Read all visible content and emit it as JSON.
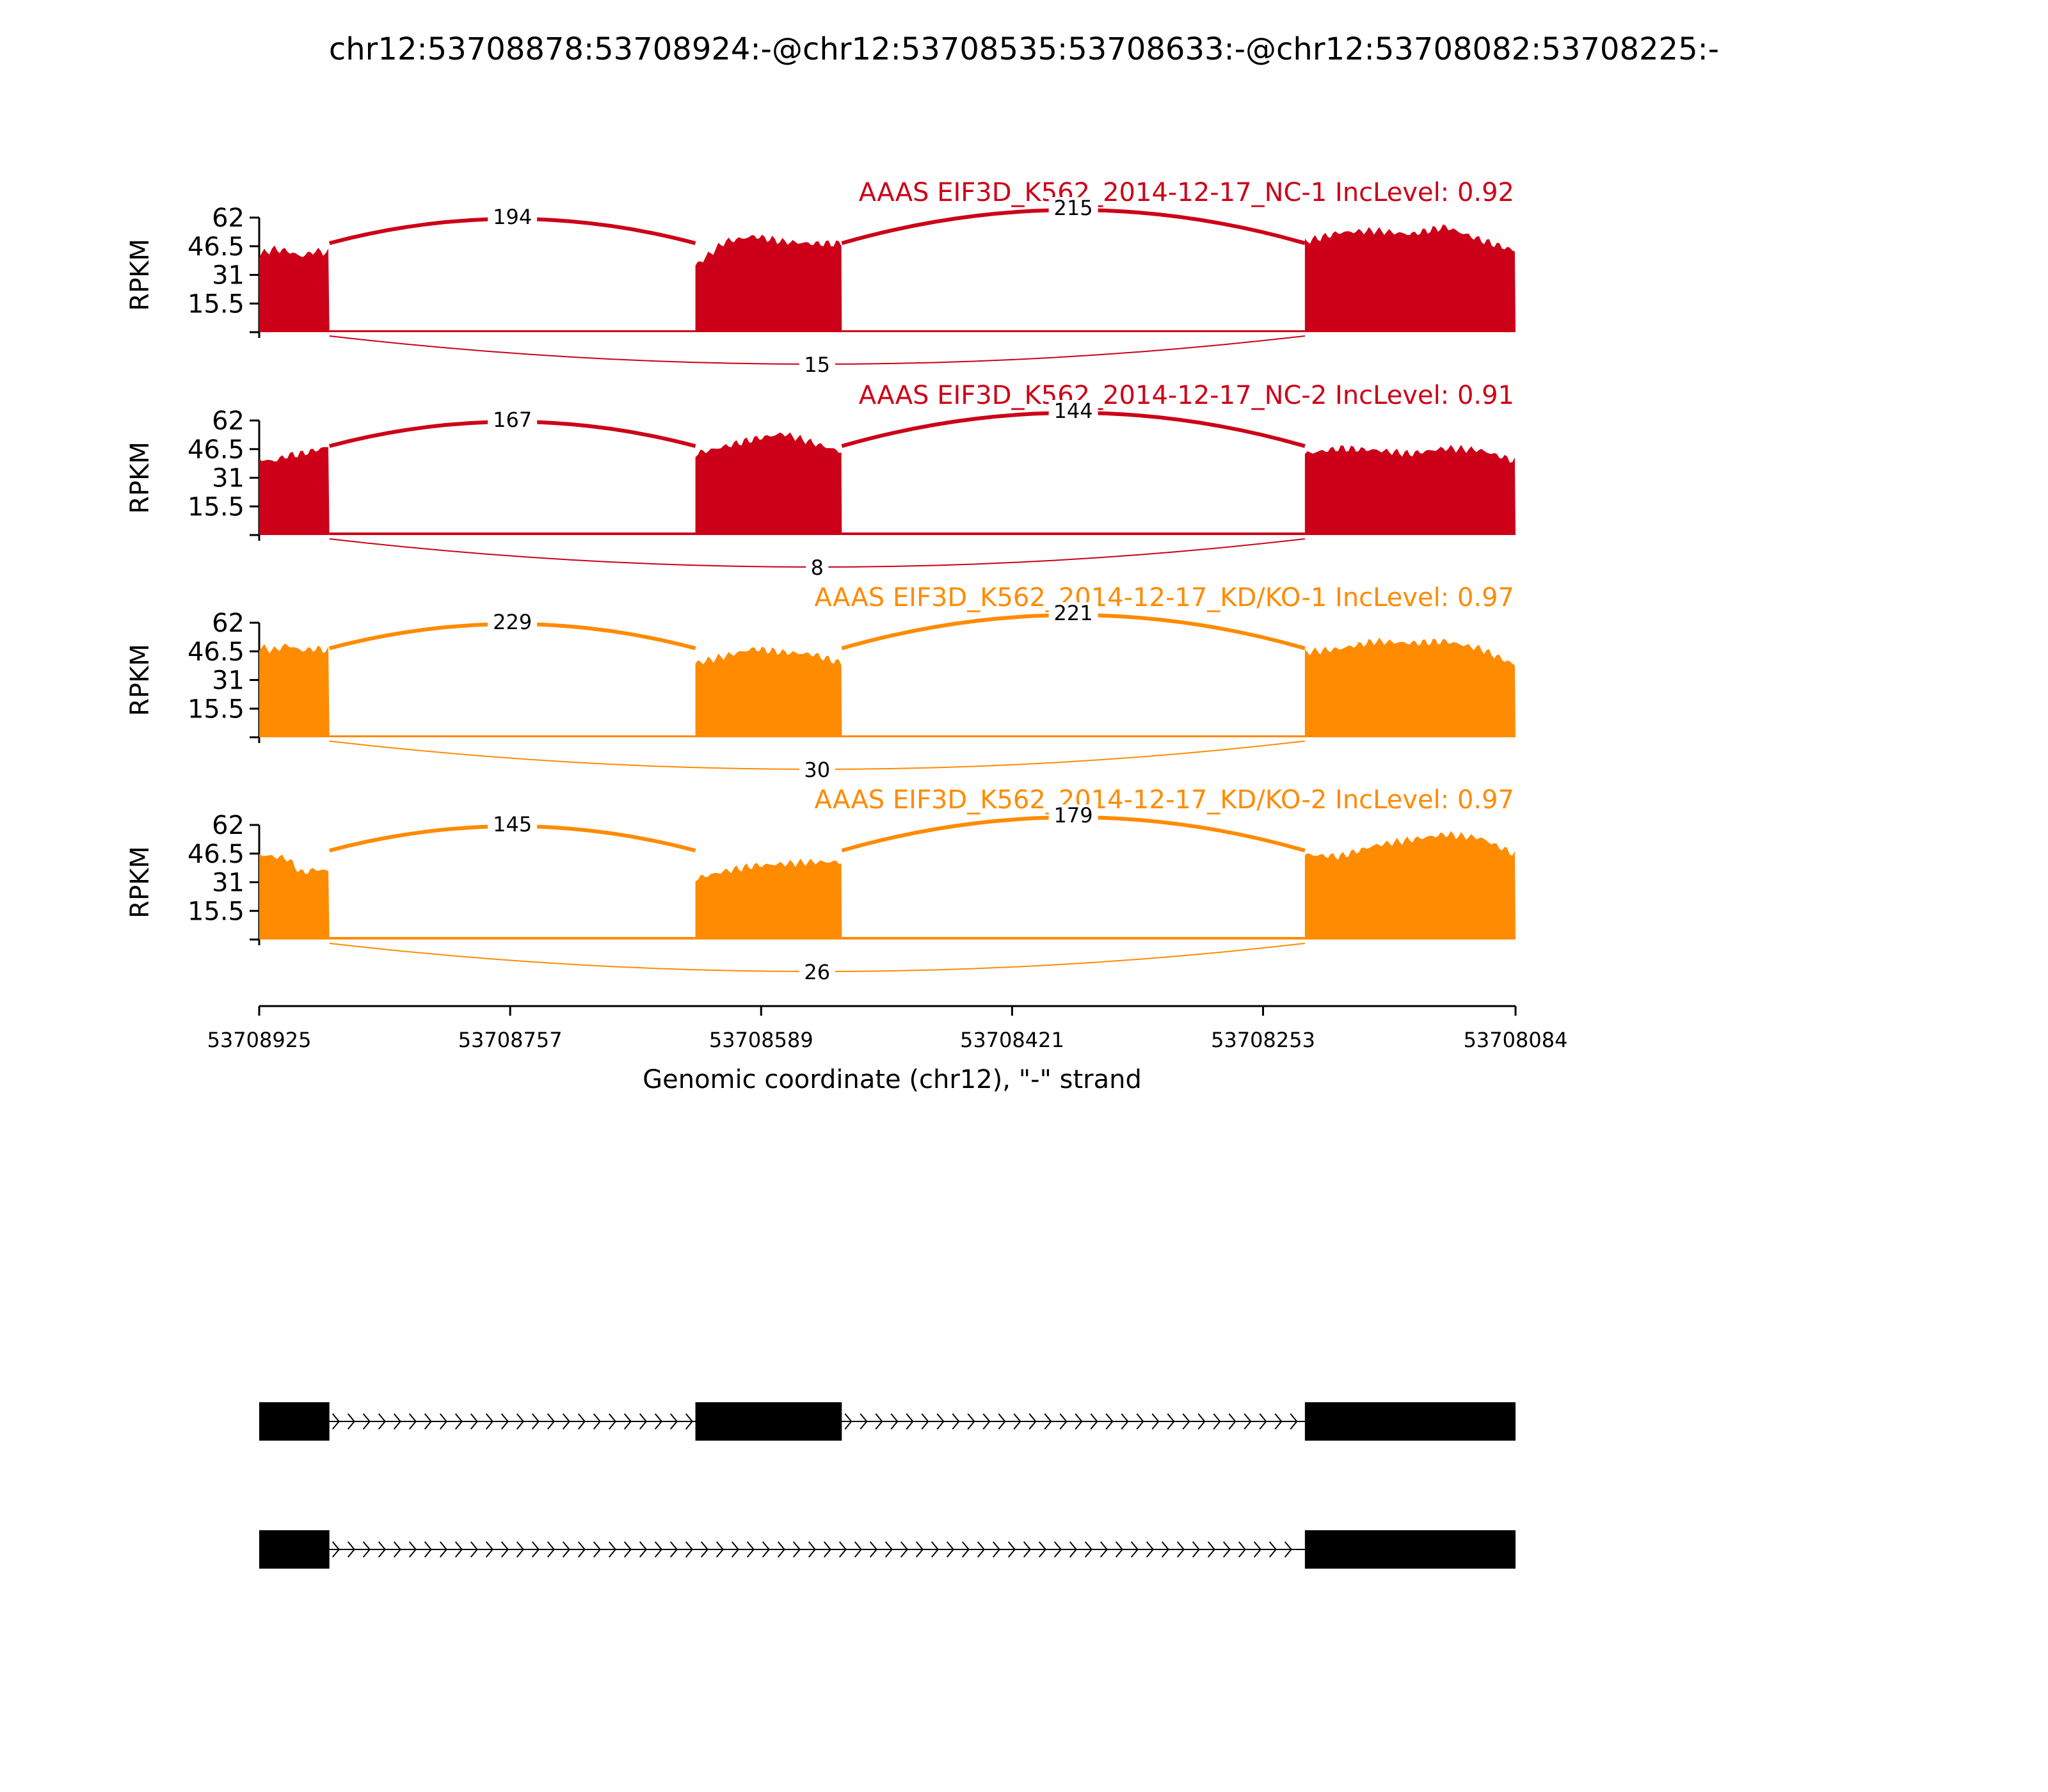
{
  "figure": {
    "title": "chr12:53708878:53708924:-@chr12:53708535:53708633:-@chr12:53708082:53708225:-"
  },
  "chart_data": {
    "type": "area",
    "title": "chr12:53708878:53708924:-@chr12:53708535:53708633:-@chr12:53708082:53708225:-",
    "xlabel": "Genomic coordinate (chr12), \"-\" strand",
    "ylabel": "RPKM",
    "x_reversed": true,
    "xlim": [
      53708925,
      53708084
    ],
    "x_ticks": [
      53708925,
      53708757,
      53708589,
      53708421,
      53708253,
      53708084
    ],
    "ylim": [
      0,
      62
    ],
    "y_ticks": [
      15.5,
      31,
      46.5,
      62
    ],
    "colors": {
      "NC": "#cc0018",
      "KD": "#ff8b00",
      "gene": "#000000"
    },
    "exons": [
      {
        "start": 53708925,
        "end": 53708878
      },
      {
        "start": 53708633,
        "end": 53708535
      },
      {
        "start": 53708225,
        "end": 53708084
      }
    ],
    "series": [
      {
        "name": "AAAS EIF3D_K562_2014-12-17_NC-1 IncLevel: 0.92",
        "group": "NC",
        "levels": [
          [
            42,
            45,
            44,
            41,
            44,
            43
          ],
          [
            36,
            49,
            52,
            49,
            48,
            48
          ],
          [
            49,
            54,
            55,
            53,
            57,
            50,
            44
          ]
        ],
        "junctions": {
          "upstream": "194",
          "downstream": "215",
          "skip": "15"
        }
      },
      {
        "name": "AAAS EIF3D_K562_2014-12-17_NC-2 IncLevel: 0.91",
        "group": "NC",
        "levels": [
          [
            41,
            40,
            43,
            44,
            46,
            48
          ],
          [
            44,
            48,
            52,
            55,
            50,
            45
          ],
          [
            44,
            47,
            46,
            44,
            47,
            46,
            40
          ]
        ],
        "junctions": {
          "upstream": "167",
          "downstream": "144",
          "skip": "8"
        }
      },
      {
        "name": "AAAS EIF3D_K562_2014-12-17_KD/KO-1 IncLevel: 0.97",
        "group": "KD",
        "levels": [
          [
            49,
            47,
            50,
            47,
            48,
            47
          ],
          [
            40,
            44,
            48,
            46,
            45,
            40
          ],
          [
            46,
            48,
            52,
            51,
            52,
            48,
            39
          ]
        ],
        "junctions": {
          "upstream": "229",
          "downstream": "221",
          "skip": "30"
        }
      },
      {
        "name": "AAAS EIF3D_K562_2014-12-17_KD/KO-2 IncLevel: 0.97",
        "group": "KD",
        "levels": [
          [
            46,
            45,
            44,
            36,
            38,
            37
          ],
          [
            33,
            37,
            40,
            41,
            42,
            42
          ],
          [
            46,
            45,
            51,
            54,
            57,
            55,
            46
          ]
        ],
        "junctions": {
          "upstream": "145",
          "downstream": "179",
          "skip": "26"
        }
      }
    ]
  }
}
